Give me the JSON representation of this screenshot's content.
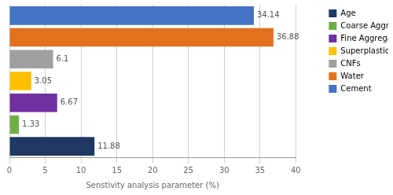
{
  "chart_data": {
    "type": "bar",
    "orientation": "horizontal",
    "categories": [
      "Age",
      "Coarse Aggregate",
      "Fine Aggregate",
      "Superplasticizers",
      "CNFs",
      "Water",
      "Cement"
    ],
    "values": [
      11.88,
      1.33,
      6.67,
      3.05,
      6.1,
      36.88,
      34.14
    ],
    "value_labels": [
      "11.88",
      "1.33",
      "6.67",
      "3.05",
      "6.1",
      "36.88",
      "34.14"
    ],
    "colors": [
      "#1F3864",
      "#70AD47",
      "#7030A0",
      "#FFC000",
      "#A0A0A0",
      "#E2711D",
      "#4472C4"
    ],
    "xlabel": "Senstivity analysis parameter (%)",
    "xlim": [
      0,
      40
    ],
    "xticks": [
      0,
      5,
      10,
      15,
      20,
      25,
      30,
      35,
      40
    ],
    "grid": true,
    "legend": "right",
    "data_labels": true,
    "tick_labels": "x"
  }
}
